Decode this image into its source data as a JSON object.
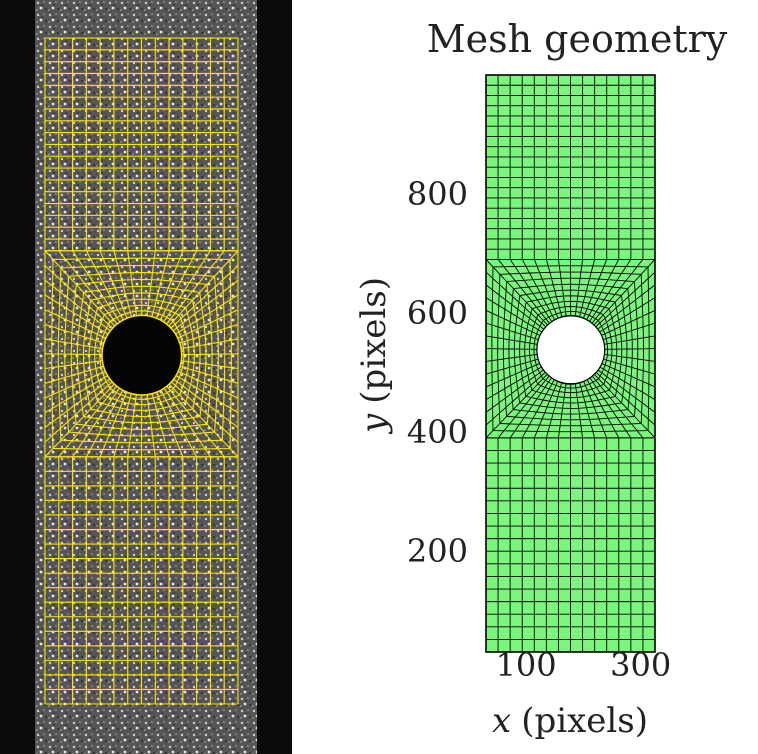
{
  "left_panel": {
    "mesh_color": "#ffe600",
    "background_color": "#0d0d0d"
  },
  "chart_data": {
    "type": "mesh",
    "title": "Mesh geometry",
    "xlabel_var": "x",
    "xlabel_unit": "(pixels)",
    "ylabel_var": "y",
    "ylabel_unit": "(pixels)",
    "xlim": [
      30,
      325
    ],
    "ylim": [
      30,
      1000
    ],
    "xticks": [
      100,
      300
    ],
    "yticks": [
      200,
      400,
      600,
      800
    ],
    "region_color": "#7cf57c",
    "edge_color": "#000000",
    "outer_box": {
      "x": [
        30,
        325
      ],
      "y": [
        30,
        1000
      ]
    },
    "refined_region": {
      "x": [
        30,
        325
      ],
      "y": [
        390,
        690
      ]
    },
    "hole": {
      "cx": 178,
      "cy": 538,
      "r": 58
    }
  }
}
